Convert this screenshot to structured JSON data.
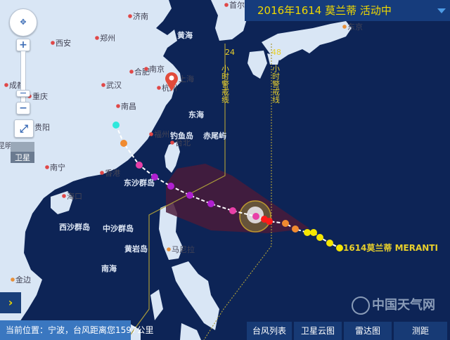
{
  "header": {
    "title": "2016年1614 莫兰蒂 活动中",
    "dropdown_icon": "triangle-down-icon"
  },
  "colors": {
    "land": "#d9e6f5",
    "sea": "#0d2456",
    "accent": "#f0d800",
    "header": "#163c7c",
    "status": "#3a77c0",
    "button": "#173a75"
  },
  "cities": [
    {
      "name": "首尔"
    },
    {
      "name": "济南"
    },
    {
      "name": "西安"
    },
    {
      "name": "郑州"
    },
    {
      "name": "合肥"
    },
    {
      "name": "南京"
    },
    {
      "name": "武汉"
    },
    {
      "name": "杭州"
    },
    {
      "name": "上海"
    },
    {
      "name": "成都"
    },
    {
      "name": "重庆"
    },
    {
      "name": "南昌"
    },
    {
      "name": "贵阳"
    },
    {
      "name": "福州"
    },
    {
      "name": "台北"
    },
    {
      "name": "昆明"
    },
    {
      "name": "南宁"
    },
    {
      "name": "香港"
    },
    {
      "name": "海口"
    },
    {
      "name": "金边"
    },
    {
      "name": "马尼拉"
    },
    {
      "name": "东京"
    }
  ],
  "sea_labels": [
    "黄海",
    "东海",
    "钓鱼岛",
    "赤尾屿",
    "东沙群岛",
    "西沙群岛",
    "中沙群岛",
    "黄岩岛",
    "南海"
  ],
  "warning_lines": {
    "h24": {
      "hours": "24",
      "text": "小时警戒线"
    },
    "h48": {
      "hours": "48",
      "text": "小时警戒线"
    }
  },
  "typhoon": {
    "label": "1614莫兰蒂 MERANTI"
  },
  "controls": {
    "satellite_label": "卫星",
    "zoom_in": "+",
    "zoom_out": "−",
    "expand": "›"
  },
  "status": {
    "text": "当前位置：宁波，台风距离您1597公里"
  },
  "buttons": [
    {
      "label": "台风列表"
    },
    {
      "label": "卫星云图"
    },
    {
      "label": "雷达图"
    },
    {
      "label": "测距"
    }
  ],
  "watermark": "中国天气网"
}
